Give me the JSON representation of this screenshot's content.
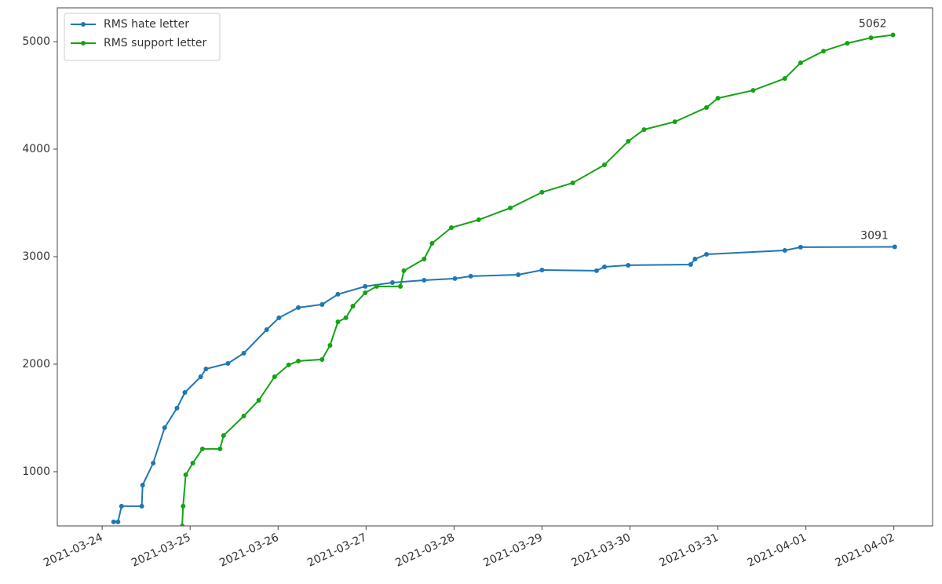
{
  "chart_data": {
    "type": "line",
    "xlim": [
      -0.51,
      9.44
    ],
    "xticks": [
      {
        "value": 0,
        "label": "2021-03-24"
      },
      {
        "value": 1,
        "label": "2021-03-25"
      },
      {
        "value": 2,
        "label": "2021-03-26"
      },
      {
        "value": 3,
        "label": "2021-03-27"
      },
      {
        "value": 4,
        "label": "2021-03-28"
      },
      {
        "value": 5,
        "label": "2021-03-29"
      },
      {
        "value": 6,
        "label": "2021-03-30"
      },
      {
        "value": 7,
        "label": "2021-03-31"
      },
      {
        "value": 8,
        "label": "2021-04-01"
      },
      {
        "value": 9,
        "label": "2021-04-02"
      }
    ],
    "ylim": [
      496,
      5314
    ],
    "yticks": [
      1000,
      2000,
      3000,
      4000,
      5000
    ],
    "grid": false,
    "legend": "upper left",
    "series": [
      {
        "name": "RMS hate letter",
        "color": "#1f77b4",
        "annotation": "3091",
        "x": [
          0.13,
          0.18,
          0.22,
          0.45,
          0.46,
          0.58,
          0.71,
          0.85,
          0.94,
          1.12,
          1.18,
          1.43,
          1.61,
          1.87,
          2.01,
          2.23,
          2.5,
          2.68,
          2.99,
          3.3,
          3.66,
          4.01,
          4.19,
          4.73,
          5.0,
          5.62,
          5.71,
          5.98,
          6.69,
          6.74,
          6.87,
          7.76,
          7.94,
          9.01
        ],
        "values": [
          533,
          533,
          679,
          679,
          876,
          1080,
          1409,
          1591,
          1737,
          1883,
          1956,
          2007,
          2102,
          2321,
          2431,
          2526,
          2555,
          2650,
          2723,
          2759,
          2781,
          2796,
          2818,
          2832,
          2876,
          2869,
          2905,
          2920,
          2927,
          2978,
          3022,
          3058,
          3088,
          3091
        ]
      },
      {
        "name": "RMS support letter",
        "color": "#14a314",
        "annotation": "5062",
        "x": [
          0.91,
          0.92,
          0.95,
          1.03,
          1.14,
          1.34,
          1.38,
          1.61,
          1.78,
          1.96,
          2.12,
          2.23,
          2.5,
          2.59,
          2.68,
          2.77,
          2.85,
          2.99,
          3.12,
          3.39,
          3.43,
          3.66,
          3.75,
          3.97,
          4.28,
          4.64,
          5.0,
          5.35,
          5.71,
          5.98,
          6.16,
          6.51,
          6.87,
          7.0,
          7.4,
          7.76,
          7.94,
          8.2,
          8.47,
          8.74,
          8.99
        ],
        "values": [
          496,
          679,
          971,
          1080,
          1212,
          1212,
          1336,
          1518,
          1664,
          1883,
          1993,
          2029,
          2044,
          2175,
          2394,
          2431,
          2540,
          2664,
          2723,
          2723,
          2869,
          2978,
          3124,
          3270,
          3343,
          3453,
          3599,
          3686,
          3854,
          4073,
          4182,
          4255,
          4387,
          4474,
          4547,
          4657,
          4803,
          4912,
          4985,
          5036,
          5062
        ]
      }
    ]
  }
}
